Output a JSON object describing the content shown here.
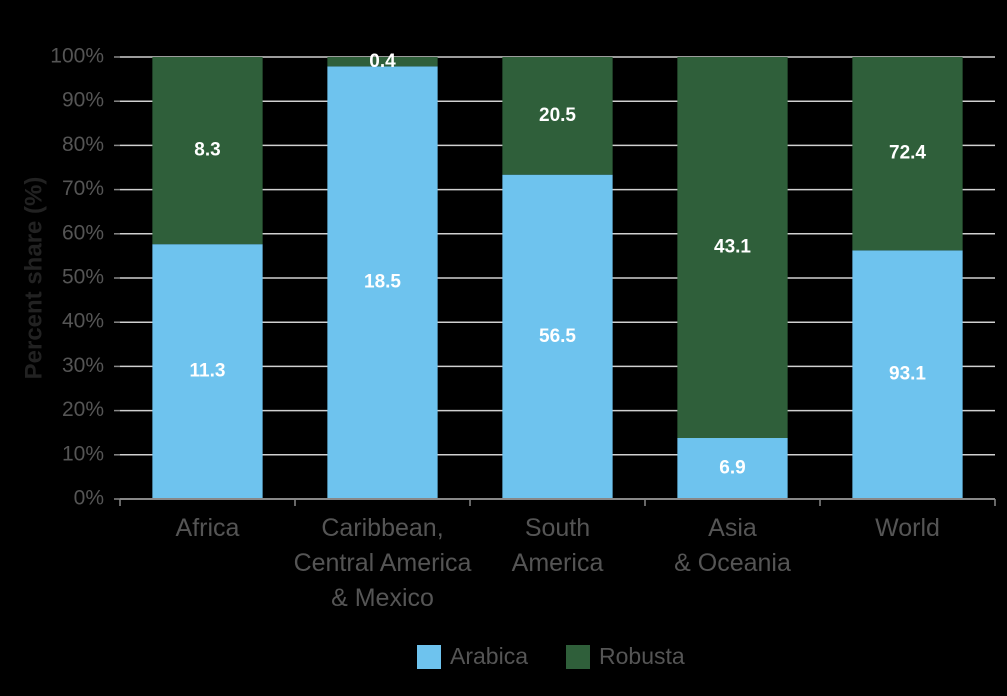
{
  "chart_data": {
    "type": "bar",
    "stack": "percent",
    "ylabel": "Percent share (%)",
    "categories": [
      "Africa",
      "Caribbean,\nCentral America\n& Mexico",
      "South\nAmerica",
      "Asia\n& Oceania",
      "World"
    ],
    "series": [
      {
        "name": "Arabica",
        "color": "#6ec3ee",
        "values": [
          11.3,
          18.5,
          56.5,
          6.9,
          93.1
        ]
      },
      {
        "name": "Robusta",
        "color": "#2f5f3a",
        "values": [
          8.3,
          0.4,
          20.5,
          43.1,
          72.4
        ]
      }
    ],
    "ylim": [
      0,
      100
    ],
    "yticks": [
      {
        "value": 0,
        "label": "0%"
      },
      {
        "value": 10,
        "label": "10%"
      },
      {
        "value": 20,
        "label": "20%"
      },
      {
        "value": 30,
        "label": "30%"
      },
      {
        "value": 40,
        "label": "40%"
      },
      {
        "value": 50,
        "label": "50%"
      },
      {
        "value": 60,
        "label": "60%"
      },
      {
        "value": 70,
        "label": "70%"
      },
      {
        "value": 80,
        "label": "80%"
      },
      {
        "value": 90,
        "label": "90%"
      },
      {
        "value": 100,
        "label": "100%"
      }
    ],
    "grid": true,
    "legend": "bottom"
  }
}
